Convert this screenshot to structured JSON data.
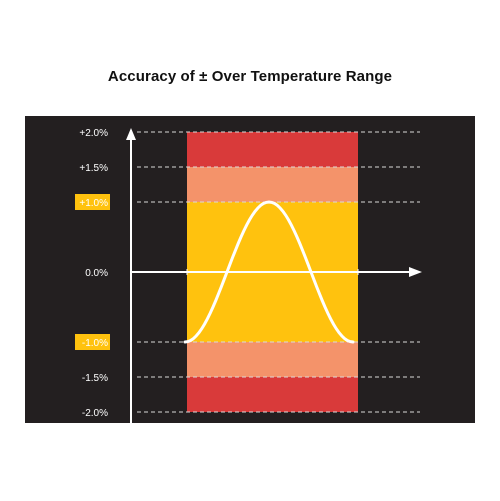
{
  "title": "Accuracy of ± Over Temperature Range",
  "colors": {
    "background": "#231f20",
    "outer_band": "#d93a3a",
    "middle_band": "#f4936a",
    "inner_band": "#ffc20e",
    "curve": "#ffffff",
    "axis": "#ffffff",
    "highlight_label_bg": "#ffc20e"
  },
  "y_levels": [
    {
      "value": 2.0,
      "label": "+2.0%",
      "highlight": false
    },
    {
      "value": 1.5,
      "label": "+1.5%",
      "highlight": false
    },
    {
      "value": 1.0,
      "label": "+1.0%",
      "highlight": true
    },
    {
      "value": 0.0,
      "label": "0.0%",
      "highlight": false
    },
    {
      "value": -1.0,
      "label": "-1.0%",
      "highlight": true
    },
    {
      "value": -1.5,
      "label": "-1.5%",
      "highlight": false
    },
    {
      "value": -2.0,
      "label": "-2.0%",
      "highlight": false
    }
  ],
  "bands": [
    {
      "name": "outer",
      "from": -2.0,
      "to": 2.0,
      "color": "#d93a3a"
    },
    {
      "name": "middle",
      "from": -1.5,
      "to": 1.5,
      "color": "#f4936a"
    },
    {
      "name": "inner",
      "from": -1.0,
      "to": 1.0,
      "color": "#ffc20e"
    }
  ],
  "curve": {
    "min": -1.0,
    "max": 1.0
  }
}
